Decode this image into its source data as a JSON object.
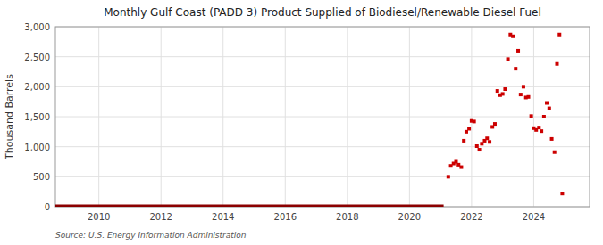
{
  "chart_data": {
    "type": "scatter",
    "title": "Monthly Gulf Coast (PADD 3) Product Supplied of Biodiesel/Renewable Diesel Fuel",
    "ylabel": "Thousand Barrels",
    "annotation": "Source: U.S. Energy Information Administration",
    "grid": true,
    "xlim": [
      2008.6,
      2025.8
    ],
    "xticks": [
      2010,
      2012,
      2014,
      2016,
      2018,
      2020,
      2022,
      2024
    ],
    "ylim": [
      0,
      3000
    ],
    "yticks": [
      0,
      500,
      {
        "value": 1000,
        "label": "1,000"
      },
      {
        "value": 1500,
        "label": "1,500"
      },
      {
        "value": 2000,
        "label": "2,000"
      },
      {
        "value": 2500,
        "label": "2,500"
      },
      {
        "value": 3000,
        "label": "3,000"
      }
    ],
    "series": [
      {
        "type": "scatter",
        "marker": "square",
        "color": "#cc0000",
        "x": [
          2021.25,
          2021.33,
          2021.42,
          2021.5,
          2021.58,
          2021.67,
          2021.75,
          2021.83,
          2021.92,
          2022.0,
          2022.08,
          2022.17,
          2022.25,
          2022.33,
          2022.42,
          2022.5,
          2022.58,
          2022.67,
          2022.75,
          2022.83,
          2022.92,
          2023.0,
          2023.08,
          2023.17,
          2023.25,
          2023.33,
          2023.42,
          2023.5,
          2023.58,
          2023.67,
          2023.75,
          2023.83,
          2023.92,
          2024.0,
          2024.08,
          2024.17,
          2024.25,
          2024.33,
          2024.42,
          2024.5,
          2024.58,
          2024.67,
          2024.75,
          2024.83,
          2024.92
        ],
        "values": [
          500,
          680,
          720,
          750,
          700,
          660,
          1100,
          1250,
          1300,
          1430,
          1420,
          1010,
          950,
          1050,
          1100,
          1140,
          1080,
          1330,
          1380,
          1930,
          1860,
          1880,
          1960,
          2460,
          2870,
          2840,
          2300,
          2600,
          1870,
          2000,
          1820,
          1830,
          1510,
          1310,
          1280,
          1320,
          1260,
          1500,
          1730,
          1640,
          1130,
          910,
          2380,
          2870,
          220
        ]
      },
      {
        "type": "line",
        "line_style": "solid",
        "color": "#8b0000",
        "x": [
          2008.6,
          2021.1
        ],
        "values": [
          0,
          0
        ]
      }
    ]
  }
}
